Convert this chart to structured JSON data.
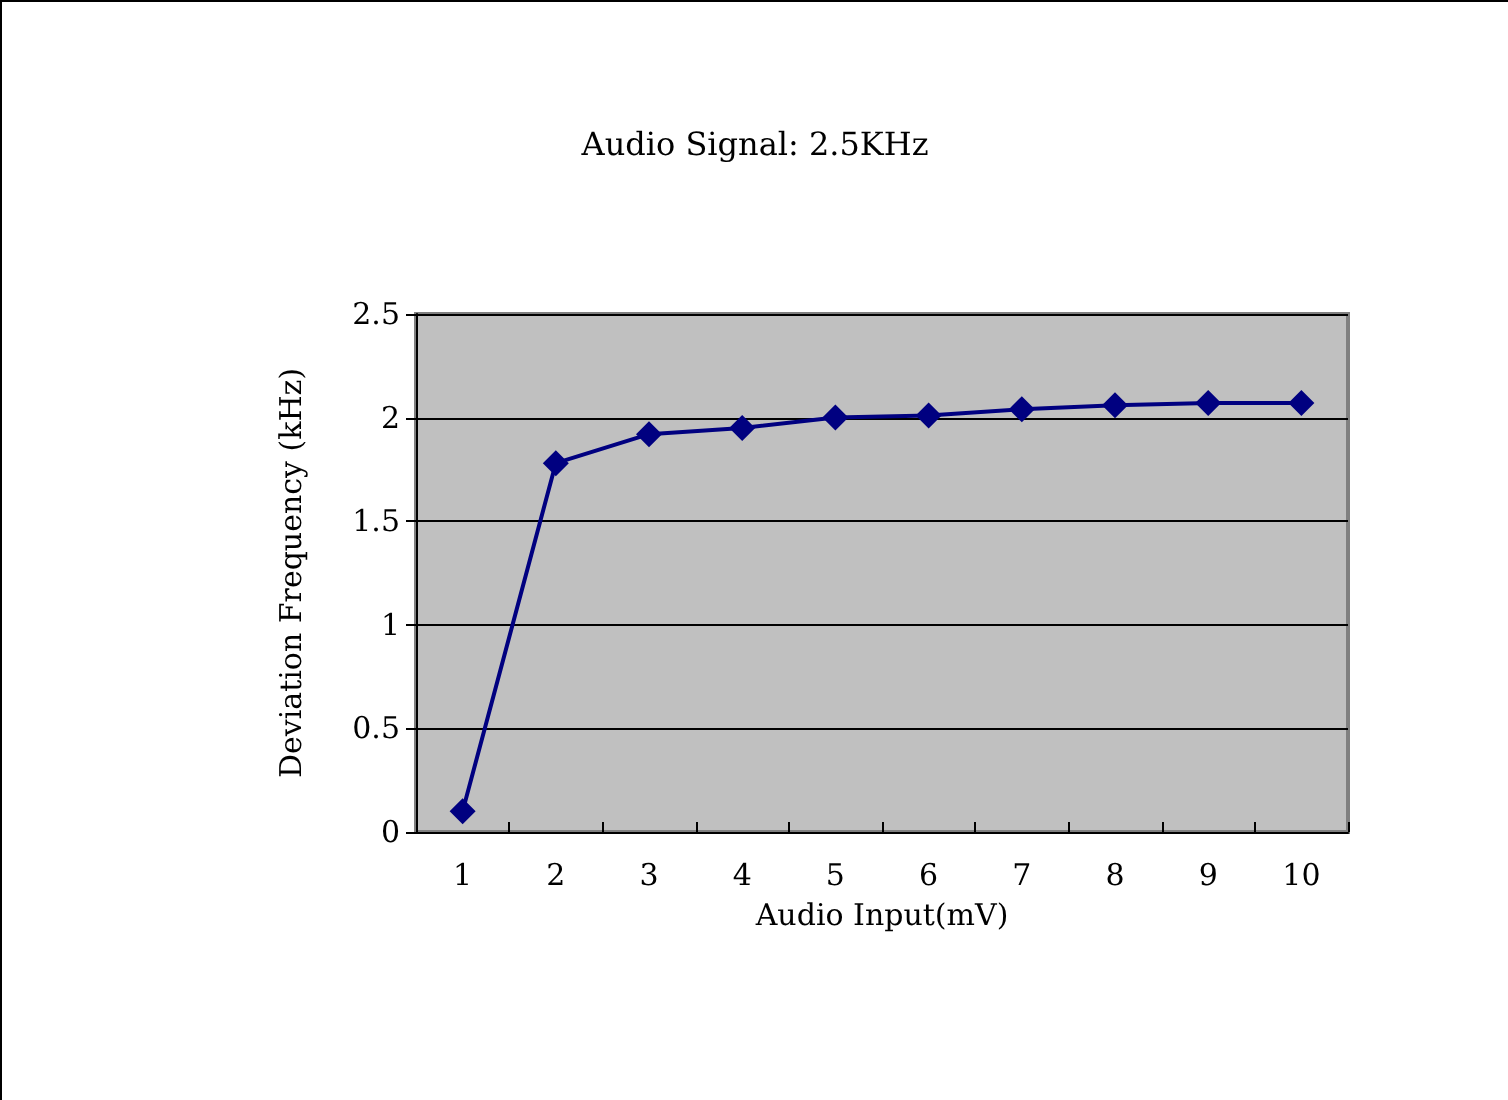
{
  "chart_data": {
    "type": "line",
    "title": "Audio Signal: 2.5KHz",
    "xlabel": "Audio Input(mV)",
    "ylabel": "Deviation Frequency (kHz)",
    "categories": [
      "1",
      "2",
      "3",
      "4",
      "5",
      "6",
      "7",
      "8",
      "9",
      "10"
    ],
    "series": [
      {
        "color": "#000080",
        "values": [
          0.1,
          1.78,
          1.92,
          1.95,
          2.0,
          2.01,
          2.04,
          2.06,
          2.07,
          2.07
        ]
      }
    ],
    "ylim": [
      0,
      2.5
    ],
    "yticks": [
      0,
      {
        "value": 0.5,
        "label": "0.5"
      },
      1,
      {
        "value": 1.5,
        "label": "1.5"
      },
      2,
      {
        "value": 2.5,
        "label": "2.5"
      }
    ],
    "grid": "y",
    "marker": "diamond",
    "line_style": "solid"
  }
}
